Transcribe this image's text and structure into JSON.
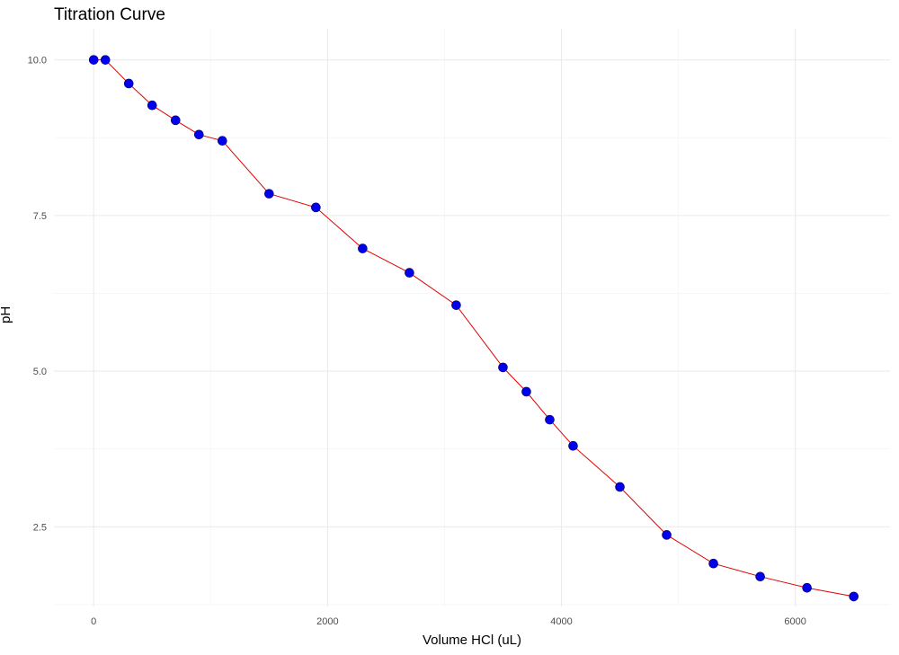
{
  "chart_data": {
    "type": "line",
    "title": "Titration Curve",
    "xlabel": "Volume HCl (uL)",
    "ylabel": "pH",
    "xlim": [
      -340,
      6810
    ],
    "ylim": [
      1.22,
      10.5
    ],
    "x_ticks": [
      0,
      2000,
      4000,
      6000
    ],
    "x_tick_labels": [
      "0",
      "2000",
      "4000",
      "6000"
    ],
    "y_ticks": [
      2.5,
      5.0,
      7.5,
      10.0
    ],
    "y_tick_labels": [
      "2.5",
      "5.0",
      "7.5",
      "10.0"
    ],
    "grid": true,
    "series": [
      {
        "line_color": "#e00000",
        "point_color": "#0000ee",
        "x": [
          0,
          100,
          300,
          500,
          700,
          900,
          1100,
          1500,
          1900,
          2300,
          2700,
          3100,
          3500,
          3700,
          3900,
          4100,
          4500,
          4900,
          5300,
          5700,
          6100,
          6500
        ],
        "y": [
          10.0,
          10.0,
          9.62,
          9.27,
          9.03,
          8.8,
          8.7,
          7.85,
          7.63,
          6.97,
          6.58,
          6.06,
          5.06,
          4.67,
          4.22,
          3.8,
          3.14,
          2.37,
          1.91,
          1.7,
          1.52,
          1.38
        ]
      }
    ]
  }
}
